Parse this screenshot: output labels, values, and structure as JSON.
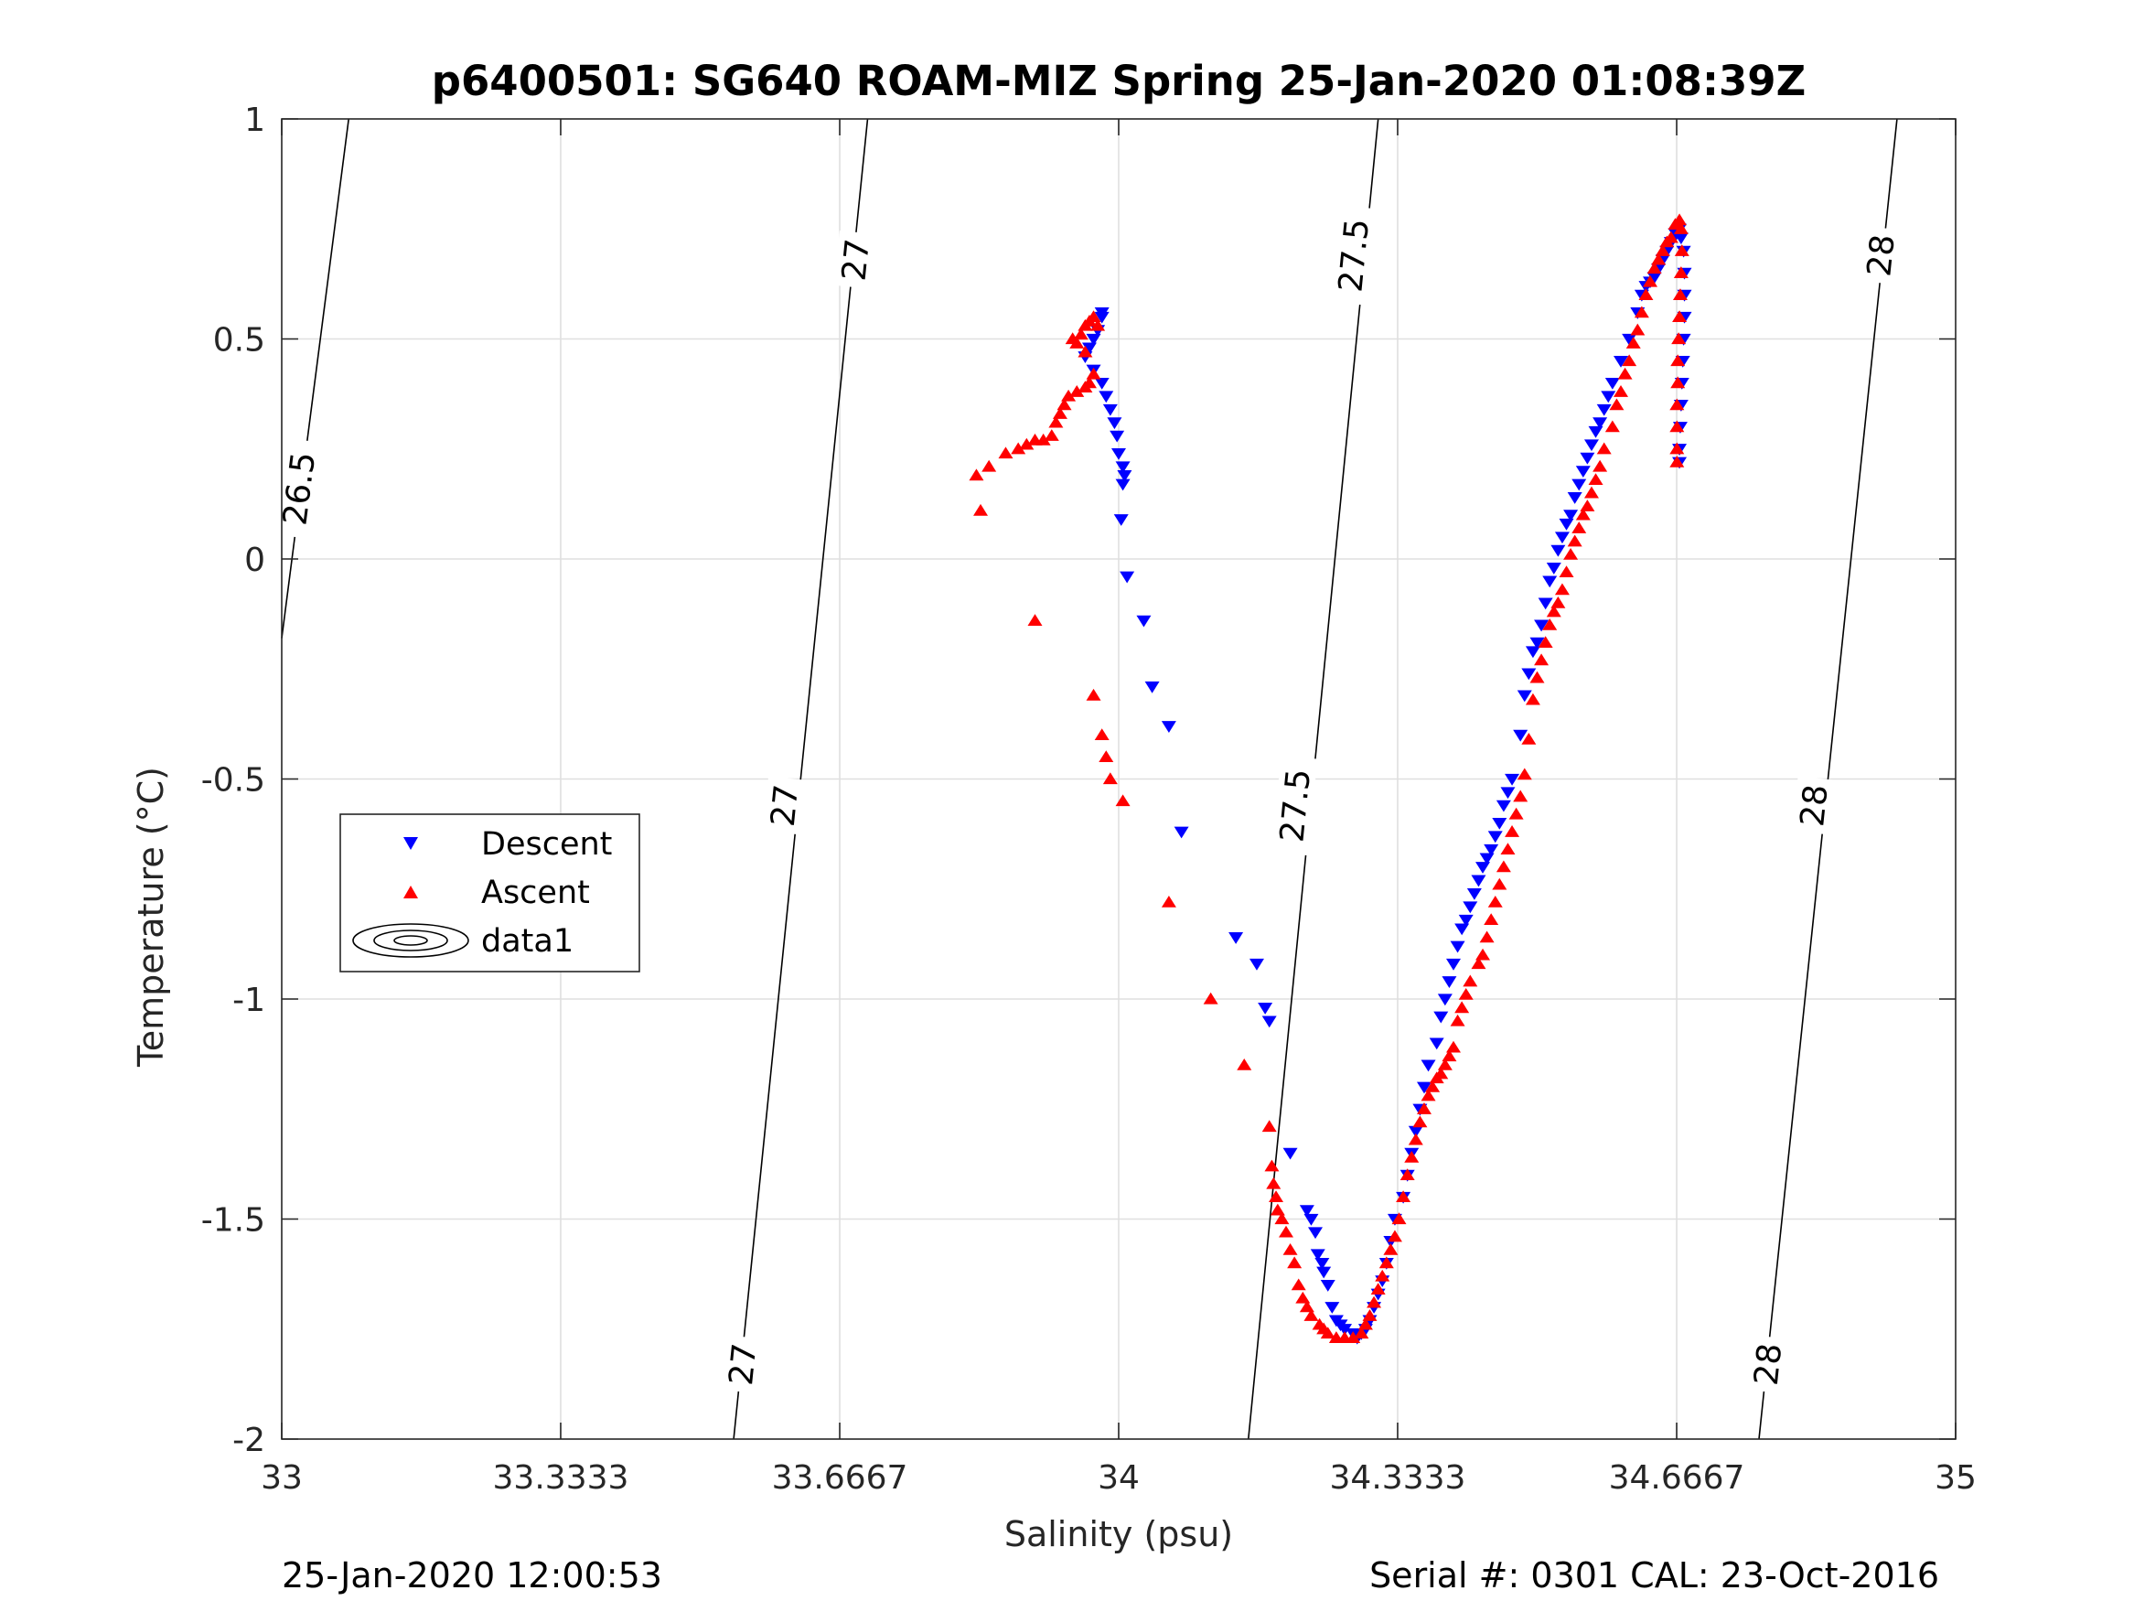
{
  "chart_data": {
    "type": "scatter",
    "title": "p6400501: SG640 ROAM-MIZ Spring 25-Jan-2020 01:08:39Z",
    "xlabel": "Salinity (psu)",
    "ylabel": "Temperature (°C)",
    "xlim": [
      33,
      35
    ],
    "ylim": [
      -2,
      1
    ],
    "grid": true,
    "x_ticks": [
      33,
      33.3333,
      33.6667,
      34,
      34.3333,
      34.6667,
      35
    ],
    "x_tick_labels": [
      "33",
      "33.3333",
      "33.6667",
      "34",
      "34.3333",
      "34.6667",
      "35"
    ],
    "y_ticks": [
      -2,
      -1.5,
      -1,
      -0.5,
      0,
      0.5,
      1
    ],
    "y_tick_labels": [
      "-2",
      "-1.5",
      "-1",
      "-0.5",
      "0",
      "0.5",
      "1"
    ],
    "legend": {
      "placement": "middle-left",
      "entries": [
        "Descent",
        "Ascent",
        "data1"
      ]
    },
    "series": [
      {
        "name": "Descent",
        "marker": "triangle-down",
        "color": "#0000ff",
        "points": [
          [
            33.98,
            0.56
          ],
          [
            33.98,
            0.55
          ],
          [
            33.975,
            0.52
          ],
          [
            33.97,
            0.5
          ],
          [
            33.965,
            0.48
          ],
          [
            33.96,
            0.46
          ],
          [
            33.97,
            0.43
          ],
          [
            33.98,
            0.4
          ],
          [
            33.985,
            0.37
          ],
          [
            33.99,
            0.34
          ],
          [
            33.995,
            0.31
          ],
          [
            33.998,
            0.28
          ],
          [
            34.0,
            0.24
          ],
          [
            34.005,
            0.21
          ],
          [
            34.007,
            0.19
          ],
          [
            34.005,
            0.17
          ],
          [
            34.003,
            0.09
          ],
          [
            34.01,
            -0.04
          ],
          [
            34.03,
            -0.14
          ],
          [
            34.04,
            -0.29
          ],
          [
            34.06,
            -0.38
          ],
          [
            34.075,
            -0.62
          ],
          [
            34.14,
            -0.86
          ],
          [
            34.165,
            -0.92
          ],
          [
            34.175,
            -1.02
          ],
          [
            34.18,
            -1.05
          ],
          [
            34.205,
            -1.35
          ],
          [
            34.225,
            -1.48
          ],
          [
            34.23,
            -1.5
          ],
          [
            34.235,
            -1.53
          ],
          [
            34.238,
            -1.58
          ],
          [
            34.243,
            -1.6
          ],
          [
            34.245,
            -1.62
          ],
          [
            34.25,
            -1.65
          ],
          [
            34.255,
            -1.7
          ],
          [
            34.26,
            -1.73
          ],
          [
            34.265,
            -1.74
          ],
          [
            34.27,
            -1.75
          ],
          [
            34.28,
            -1.76
          ],
          [
            34.285,
            -1.77
          ],
          [
            34.29,
            -1.76
          ],
          [
            34.295,
            -1.75
          ],
          [
            34.3,
            -1.73
          ],
          [
            34.305,
            -1.7
          ],
          [
            34.31,
            -1.67
          ],
          [
            34.315,
            -1.64
          ],
          [
            34.32,
            -1.6
          ],
          [
            34.325,
            -1.55
          ],
          [
            34.33,
            -1.5
          ],
          [
            34.34,
            -1.45
          ],
          [
            34.345,
            -1.4
          ],
          [
            34.35,
            -1.35
          ],
          [
            34.355,
            -1.3
          ],
          [
            34.36,
            -1.25
          ],
          [
            34.365,
            -1.2
          ],
          [
            34.37,
            -1.15
          ],
          [
            34.38,
            -1.1
          ],
          [
            34.385,
            -1.04
          ],
          [
            34.39,
            -1.0
          ],
          [
            34.395,
            -0.96
          ],
          [
            34.4,
            -0.92
          ],
          [
            34.405,
            -0.88
          ],
          [
            34.41,
            -0.84
          ],
          [
            34.415,
            -0.82
          ],
          [
            34.42,
            -0.79
          ],
          [
            34.425,
            -0.76
          ],
          [
            34.43,
            -0.73
          ],
          [
            34.435,
            -0.7
          ],
          [
            34.44,
            -0.68
          ],
          [
            34.445,
            -0.66
          ],
          [
            34.45,
            -0.63
          ],
          [
            34.455,
            -0.6
          ],
          [
            34.46,
            -0.56
          ],
          [
            34.465,
            -0.53
          ],
          [
            34.47,
            -0.5
          ],
          [
            34.48,
            -0.4
          ],
          [
            34.485,
            -0.31
          ],
          [
            34.49,
            -0.26
          ],
          [
            34.495,
            -0.21
          ],
          [
            34.5,
            -0.19
          ],
          [
            34.505,
            -0.15
          ],
          [
            34.51,
            -0.1
          ],
          [
            34.515,
            -0.05
          ],
          [
            34.52,
            -0.02
          ],
          [
            34.525,
            0.02
          ],
          [
            34.53,
            0.05
          ],
          [
            34.535,
            0.08
          ],
          [
            34.54,
            0.1
          ],
          [
            34.545,
            0.14
          ],
          [
            34.55,
            0.17
          ],
          [
            34.555,
            0.2
          ],
          [
            34.56,
            0.23
          ],
          [
            34.565,
            0.26
          ],
          [
            34.57,
            0.29
          ],
          [
            34.575,
            0.31
          ],
          [
            34.58,
            0.34
          ],
          [
            34.585,
            0.37
          ],
          [
            34.59,
            0.4
          ],
          [
            34.6,
            0.45
          ],
          [
            34.61,
            0.5
          ],
          [
            34.62,
            0.56
          ],
          [
            34.625,
            0.6
          ],
          [
            34.63,
            0.62
          ],
          [
            34.635,
            0.63
          ],
          [
            34.64,
            0.64
          ],
          [
            34.645,
            0.66
          ],
          [
            34.65,
            0.68
          ],
          [
            34.655,
            0.7
          ],
          [
            34.66,
            0.72
          ],
          [
            34.665,
            0.74
          ],
          [
            34.67,
            0.75
          ],
          [
            34.672,
            0.73
          ],
          [
            34.675,
            0.7
          ],
          [
            34.676,
            0.65
          ],
          [
            34.676,
            0.6
          ],
          [
            34.676,
            0.55
          ],
          [
            34.675,
            0.5
          ],
          [
            34.674,
            0.45
          ],
          [
            34.673,
            0.4
          ],
          [
            34.672,
            0.35
          ],
          [
            34.671,
            0.3
          ],
          [
            34.67,
            0.25
          ],
          [
            34.67,
            0.22
          ]
        ]
      },
      {
        "name": "Ascent",
        "marker": "triangle-up",
        "color": "#ff0000",
        "points": [
          [
            33.83,
            0.19
          ],
          [
            33.835,
            0.11
          ],
          [
            33.845,
            0.21
          ],
          [
            33.865,
            0.24
          ],
          [
            33.88,
            0.25
          ],
          [
            33.89,
            0.26
          ],
          [
            33.9,
            0.27
          ],
          [
            33.91,
            0.27
          ],
          [
            33.92,
            0.28
          ],
          [
            33.925,
            0.31
          ],
          [
            33.93,
            0.33
          ],
          [
            33.935,
            0.35
          ],
          [
            33.94,
            0.37
          ],
          [
            33.95,
            0.38
          ],
          [
            33.96,
            0.39
          ],
          [
            33.965,
            0.4
          ],
          [
            33.97,
            0.42
          ],
          [
            33.96,
            0.47
          ],
          [
            33.95,
            0.49
          ],
          [
            33.945,
            0.5
          ],
          [
            33.955,
            0.51
          ],
          [
            33.96,
            0.53
          ],
          [
            33.965,
            0.54
          ],
          [
            33.97,
            0.55
          ],
          [
            33.975,
            0.53
          ],
          [
            33.9,
            -0.14
          ],
          [
            33.97,
            -0.31
          ],
          [
            33.98,
            -0.4
          ],
          [
            33.985,
            -0.45
          ],
          [
            33.99,
            -0.5
          ],
          [
            34.005,
            -0.55
          ],
          [
            34.06,
            -0.78
          ],
          [
            34.11,
            -1.0
          ],
          [
            34.15,
            -1.15
          ],
          [
            34.18,
            -1.29
          ],
          [
            34.183,
            -1.38
          ],
          [
            34.185,
            -1.42
          ],
          [
            34.188,
            -1.45
          ],
          [
            34.19,
            -1.48
          ],
          [
            34.195,
            -1.5
          ],
          [
            34.2,
            -1.53
          ],
          [
            34.205,
            -1.57
          ],
          [
            34.21,
            -1.6
          ],
          [
            34.215,
            -1.65
          ],
          [
            34.22,
            -1.68
          ],
          [
            34.225,
            -1.7
          ],
          [
            34.23,
            -1.72
          ],
          [
            34.24,
            -1.74
          ],
          [
            34.245,
            -1.75
          ],
          [
            34.25,
            -1.76
          ],
          [
            34.26,
            -1.77
          ],
          [
            34.27,
            -1.77
          ],
          [
            34.28,
            -1.77
          ],
          [
            34.29,
            -1.76
          ],
          [
            34.295,
            -1.74
          ],
          [
            34.3,
            -1.72
          ],
          [
            34.305,
            -1.69
          ],
          [
            34.31,
            -1.66
          ],
          [
            34.315,
            -1.63
          ],
          [
            34.32,
            -1.6
          ],
          [
            34.325,
            -1.57
          ],
          [
            34.33,
            -1.54
          ],
          [
            34.335,
            -1.5
          ],
          [
            34.34,
            -1.45
          ],
          [
            34.345,
            -1.4
          ],
          [
            34.35,
            -1.36
          ],
          [
            34.355,
            -1.32
          ],
          [
            34.36,
            -1.28
          ],
          [
            34.365,
            -1.25
          ],
          [
            34.37,
            -1.22
          ],
          [
            34.375,
            -1.2
          ],
          [
            34.38,
            -1.18
          ],
          [
            34.385,
            -1.17
          ],
          [
            34.39,
            -1.15
          ],
          [
            34.395,
            -1.13
          ],
          [
            34.4,
            -1.11
          ],
          [
            34.405,
            -1.05
          ],
          [
            34.41,
            -1.02
          ],
          [
            34.415,
            -0.99
          ],
          [
            34.42,
            -0.96
          ],
          [
            34.43,
            -0.92
          ],
          [
            34.435,
            -0.9
          ],
          [
            34.44,
            -0.86
          ],
          [
            34.445,
            -0.82
          ],
          [
            34.45,
            -0.78
          ],
          [
            34.455,
            -0.74
          ],
          [
            34.46,
            -0.7
          ],
          [
            34.465,
            -0.66
          ],
          [
            34.47,
            -0.62
          ],
          [
            34.475,
            -0.58
          ],
          [
            34.48,
            -0.54
          ],
          [
            34.485,
            -0.49
          ],
          [
            34.49,
            -0.41
          ],
          [
            34.495,
            -0.32
          ],
          [
            34.5,
            -0.27
          ],
          [
            34.505,
            -0.23
          ],
          [
            34.51,
            -0.19
          ],
          [
            34.515,
            -0.15
          ],
          [
            34.52,
            -0.12
          ],
          [
            34.525,
            -0.1
          ],
          [
            34.53,
            -0.07
          ],
          [
            34.535,
            -0.03
          ],
          [
            34.54,
            0.01
          ],
          [
            34.545,
            0.04
          ],
          [
            34.55,
            0.07
          ],
          [
            34.555,
            0.1
          ],
          [
            34.56,
            0.12
          ],
          [
            34.565,
            0.15
          ],
          [
            34.57,
            0.18
          ],
          [
            34.575,
            0.21
          ],
          [
            34.58,
            0.25
          ],
          [
            34.59,
            0.3
          ],
          [
            34.595,
            0.35
          ],
          [
            34.6,
            0.38
          ],
          [
            34.605,
            0.42
          ],
          [
            34.61,
            0.45
          ],
          [
            34.615,
            0.49
          ],
          [
            34.62,
            0.52
          ],
          [
            34.625,
            0.56
          ],
          [
            34.63,
            0.6
          ],
          [
            34.635,
            0.63
          ],
          [
            34.64,
            0.66
          ],
          [
            34.645,
            0.68
          ],
          [
            34.65,
            0.7
          ],
          [
            34.655,
            0.72
          ],
          [
            34.66,
            0.73
          ],
          [
            34.665,
            0.76
          ],
          [
            34.67,
            0.77
          ],
          [
            34.672,
            0.75
          ],
          [
            34.673,
            0.7
          ],
          [
            34.672,
            0.65
          ],
          [
            34.671,
            0.6
          ],
          [
            34.67,
            0.55
          ],
          [
            34.669,
            0.5
          ],
          [
            34.668,
            0.45
          ],
          [
            34.668,
            0.4
          ],
          [
            34.667,
            0.35
          ],
          [
            34.667,
            0.3
          ],
          [
            34.667,
            0.25
          ],
          [
            34.667,
            0.22
          ]
        ]
      }
    ],
    "contours": [
      {
        "label": "26.5",
        "points": [
          [
            33.0,
            -0.18
          ],
          [
            33.08,
            1.0
          ]
        ]
      },
      {
        "label": "27",
        "points": [
          [
            33.54,
            -2.0
          ],
          [
            33.7,
            1.0
          ]
        ]
      },
      {
        "label": "27.5",
        "points": [
          [
            34.155,
            -2.0
          ],
          [
            34.31,
            1.0
          ]
        ]
      },
      {
        "label": "28",
        "points": [
          [
            34.765,
            -2.0
          ],
          [
            34.93,
            1.0
          ]
        ]
      }
    ],
    "contour_labels": [
      {
        "text": "26.5",
        "x": 33.02,
        "y": 0.16
      },
      {
        "text": "27",
        "x": 33.685,
        "y": 0.68
      },
      {
        "text": "27",
        "x": 33.6,
        "y": -0.56
      },
      {
        "text": "27",
        "x": 33.55,
        "y": -1.83
      },
      {
        "text": "27.5",
        "x": 34.28,
        "y": 0.69
      },
      {
        "text": "27.5",
        "x": 34.21,
        "y": -0.56
      },
      {
        "text": "28",
        "x": 34.91,
        "y": 0.69
      },
      {
        "text": "28",
        "x": 34.83,
        "y": -0.56
      },
      {
        "text": "28",
        "x": 34.775,
        "y": -1.83
      }
    ]
  },
  "footer": {
    "timestamp": "25-Jan-2020 12:00:53",
    "serial": "Serial #: 0301  CAL: 23-Oct-2016"
  }
}
